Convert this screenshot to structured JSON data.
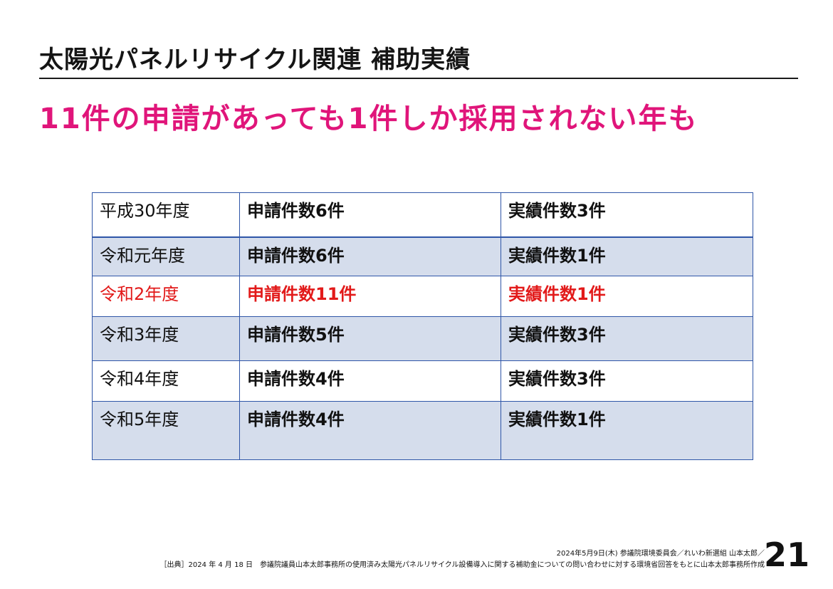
{
  "slide": {
    "title": "太陽光パネルリサイクル関連 補助実績",
    "headline": "11件の申請があっても1件しか採用されない年も",
    "page_number": "21",
    "colors": {
      "headline": "#e0157a",
      "highlight_row": "#e21a1a",
      "table_border": "#2f56a8",
      "band_row": "#d5ddec"
    }
  },
  "table": {
    "rows": [
      {
        "year": "平成30年度",
        "applications": "申請件数6件",
        "results": "実績件数3件"
      },
      {
        "year": "令和元年度",
        "applications": "申請件数6件",
        "results": "実績件数1件"
      },
      {
        "year": "令和2年度",
        "applications": "申請件数11件",
        "results": "実績件数1件"
      },
      {
        "year": "令和3年度",
        "applications": "申請件数5件",
        "results": "実績件数3件"
      },
      {
        "year": "令和4年度",
        "applications": "申請件数4件",
        "results": "実績件数3件"
      },
      {
        "year": "令和5年度",
        "applications": "申請件数4件",
        "results": "実績件数1件"
      }
    ]
  },
  "footer": {
    "line1": "2024年5月9日(木) 参議院環境委員会／れいわ新選組 山本太郎／",
    "line2": "［出典］2024 年 4 月 18 日　参議院議員山本太郎事務所の使用済み太陽光パネルリサイクル設備導入に関する補助金についての問い合わせに対する環境省回答をもとに山本太郎事務所作成"
  }
}
